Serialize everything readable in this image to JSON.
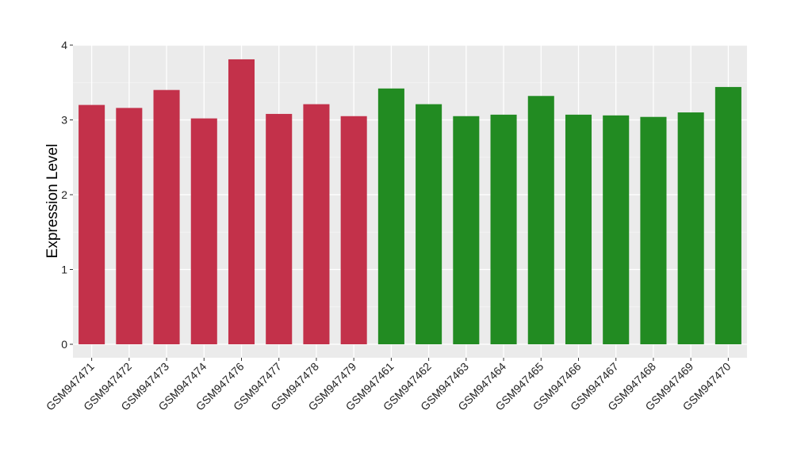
{
  "chart_data": {
    "type": "bar",
    "title": "",
    "xlabel": "",
    "ylabel": "Expression Level",
    "ylim": [
      -0.18,
      4.0
    ],
    "yticks": [
      0,
      1,
      2,
      3,
      4
    ],
    "grid": true,
    "categories": [
      "GSM947471",
      "GSM947472",
      "GSM947473",
      "GSM947474",
      "GSM947476",
      "GSM947477",
      "GSM947478",
      "GSM947479",
      "GSM947461",
      "GSM947462",
      "GSM947463",
      "GSM947464",
      "GSM947465",
      "GSM947466",
      "GSM947467",
      "GSM947468",
      "GSM947469",
      "GSM947470"
    ],
    "values": [
      3.2,
      3.16,
      3.4,
      3.02,
      3.81,
      3.08,
      3.21,
      3.05,
      3.42,
      3.21,
      3.05,
      3.07,
      3.32,
      3.07,
      3.06,
      3.04,
      3.1,
      3.44
    ],
    "group_colors": [
      "#c3314a",
      "#c3314a",
      "#c3314a",
      "#c3314a",
      "#c3314a",
      "#c3314a",
      "#c3314a",
      "#c3314a",
      "#228b22",
      "#228b22",
      "#228b22",
      "#228b22",
      "#228b22",
      "#228b22",
      "#228b22",
      "#228b22",
      "#228b22",
      "#228b22"
    ]
  }
}
